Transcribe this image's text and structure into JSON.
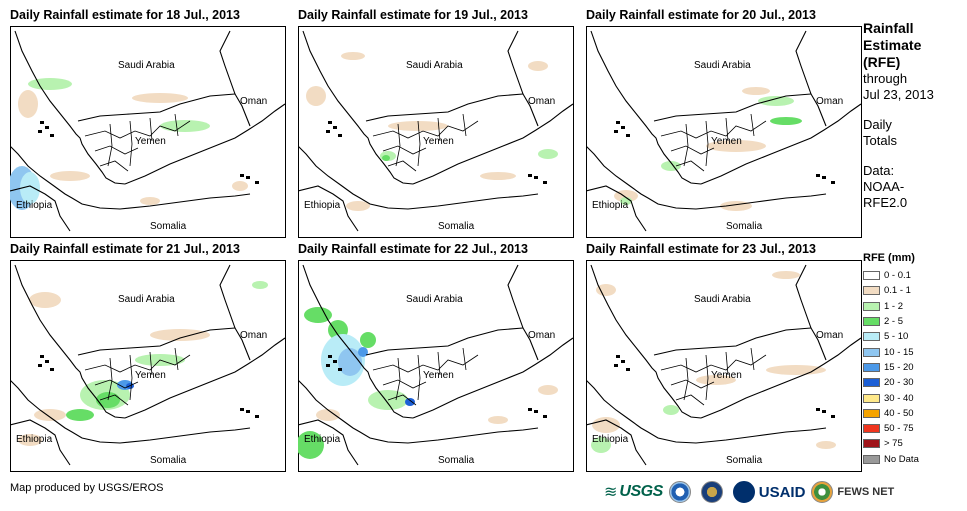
{
  "panels": [
    {
      "title": "Daily Rainfall estimate for 18 Jul., 2013"
    },
    {
      "title": "Daily Rainfall estimate for 19 Jul., 2013"
    },
    {
      "title": "Daily Rainfall estimate for 20 Jul., 2013"
    },
    {
      "title": "Daily Rainfall estimate for 21 Jul., 2013"
    },
    {
      "title": "Daily Rainfall estimate for 22 Jul., 2013"
    },
    {
      "title": "Daily Rainfall estimate for 23 Jul., 2013"
    }
  ],
  "map_labels": {
    "saudi": "Saudi Arabia",
    "oman": "Oman",
    "yemen": "Yemen",
    "ethiopia": "Ethiopia",
    "somalia": "Somalia"
  },
  "side": {
    "title_line1": "Rainfall",
    "title_line2": "Estimate",
    "title_line3": "(RFE)",
    "through": "through",
    "date": "Jul 23, 2013",
    "daily_line1": "Daily",
    "daily_line2": "Totals",
    "data_line1": "Data:",
    "data_line2": "NOAA-",
    "data_line3": "RFE2.0"
  },
  "legend": {
    "title": "RFE (mm)",
    "items": [
      {
        "label": "0 - 0.1",
        "color": "#ffffff"
      },
      {
        "label": "0.1 - 1",
        "color": "#f2dcc3"
      },
      {
        "label": "1 - 2",
        "color": "#b8f2b0"
      },
      {
        "label": "2 - 5",
        "color": "#66dd66"
      },
      {
        "label": "5 - 10",
        "color": "#b9ecf7"
      },
      {
        "label": "10 - 15",
        "color": "#8fc6f0"
      },
      {
        "label": "15 - 20",
        "color": "#4c99e8"
      },
      {
        "label": "20 - 30",
        "color": "#1c5fd6"
      },
      {
        "label": "30 - 40",
        "color": "#ffe98a"
      },
      {
        "label": "40 - 50",
        "color": "#f5a300"
      },
      {
        "label": "50 - 75",
        "color": "#f0361f"
      },
      {
        "label": "> 75",
        "color": "#a0141a"
      },
      {
        "label": "No Data",
        "color": "#999999"
      }
    ]
  },
  "credit": "Map produced by USGS/EROS",
  "logos": {
    "usgs": "USGS",
    "usaid": "USAID",
    "fews": "FEWS NET"
  }
}
